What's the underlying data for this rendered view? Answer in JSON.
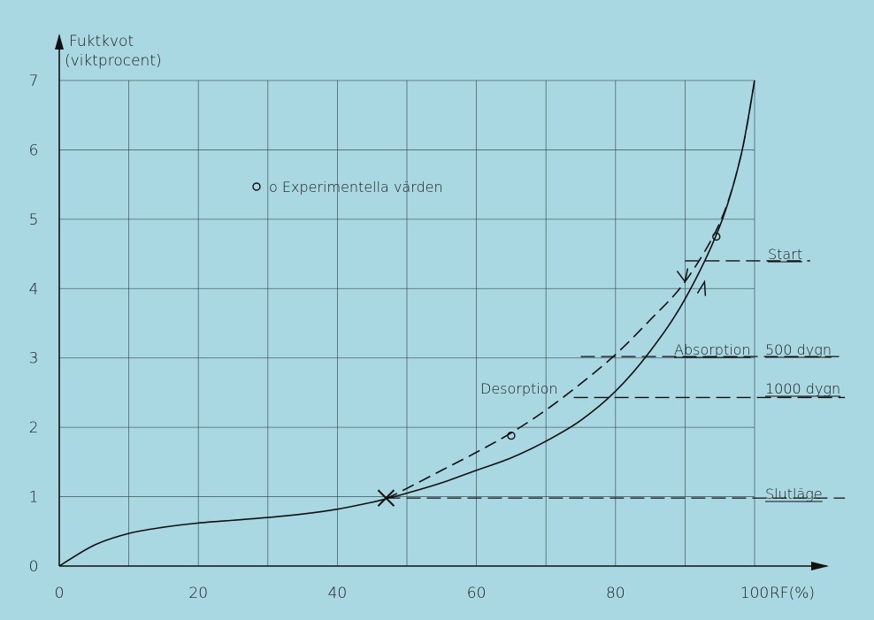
{
  "chart_data": {
    "type": "line",
    "ylabel_line1": "Fuktkvot",
    "ylabel_line2": "(viktprocent)",
    "xlabel": "RF(%)",
    "xlim": [
      0,
      100
    ],
    "ylim": [
      0,
      7
    ],
    "x_ticks": [
      "0",
      "20",
      "40",
      "60",
      "80",
      "100"
    ],
    "x_tick_values": [
      0,
      20,
      40,
      60,
      80,
      100
    ],
    "y_ticks": [
      "0",
      "1",
      "2",
      "3",
      "4",
      "5",
      "6",
      "7"
    ],
    "y_tick_values": [
      0,
      1,
      2,
      3,
      4,
      5,
      6,
      7
    ],
    "grid": true,
    "grid_x_step": 10,
    "grid_y_step": 1,
    "legend": "o Experimentella värden",
    "series": [
      {
        "style": "solid",
        "x": [
          0,
          5,
          10,
          15,
          20,
          25,
          30,
          35,
          40,
          45,
          47,
          50,
          55,
          60,
          65,
          70,
          75,
          80,
          85,
          90,
          95,
          98,
          100
        ],
        "y": [
          0,
          0.3,
          0.47,
          0.56,
          0.62,
          0.66,
          0.7,
          0.75,
          0.82,
          0.92,
          0.97,
          1.05,
          1.2,
          1.38,
          1.56,
          1.8,
          2.1,
          2.52,
          3.1,
          3.85,
          4.9,
          5.9,
          7.0
        ]
      },
      {
        "style": "dashed",
        "x": [
          47,
          50,
          55,
          60,
          65,
          70,
          75,
          80,
          85,
          90,
          95,
          98,
          100
        ],
        "y": [
          0.97,
          1.12,
          1.38,
          1.64,
          1.92,
          2.25,
          2.63,
          3.05,
          3.55,
          4.1,
          4.95,
          5.9,
          7.0
        ]
      }
    ],
    "experimental_points": [
      {
        "x": 65,
        "y": 1.88
      },
      {
        "x": 94.5,
        "y": 4.75
      }
    ],
    "annotations": {
      "start": "Start",
      "absorption": "Absorption",
      "desorption": "Desorption",
      "d500": "500 dygn",
      "d1000": "1000 dygn",
      "slutlage": "Slutläge"
    },
    "reference_lines": {
      "start": {
        "y": 4.4,
        "x_from": 90,
        "x_to": 108
      },
      "d500": {
        "y": 3.02,
        "x_from": 75,
        "x_to": 113
      },
      "d1000": {
        "y": 2.43,
        "x_from": 74,
        "x_to": 113
      },
      "slut": {
        "y": 0.98,
        "x_from": 47,
        "x_to": 113
      }
    },
    "end_marker": {
      "x": 47,
      "y": 0.98
    }
  }
}
